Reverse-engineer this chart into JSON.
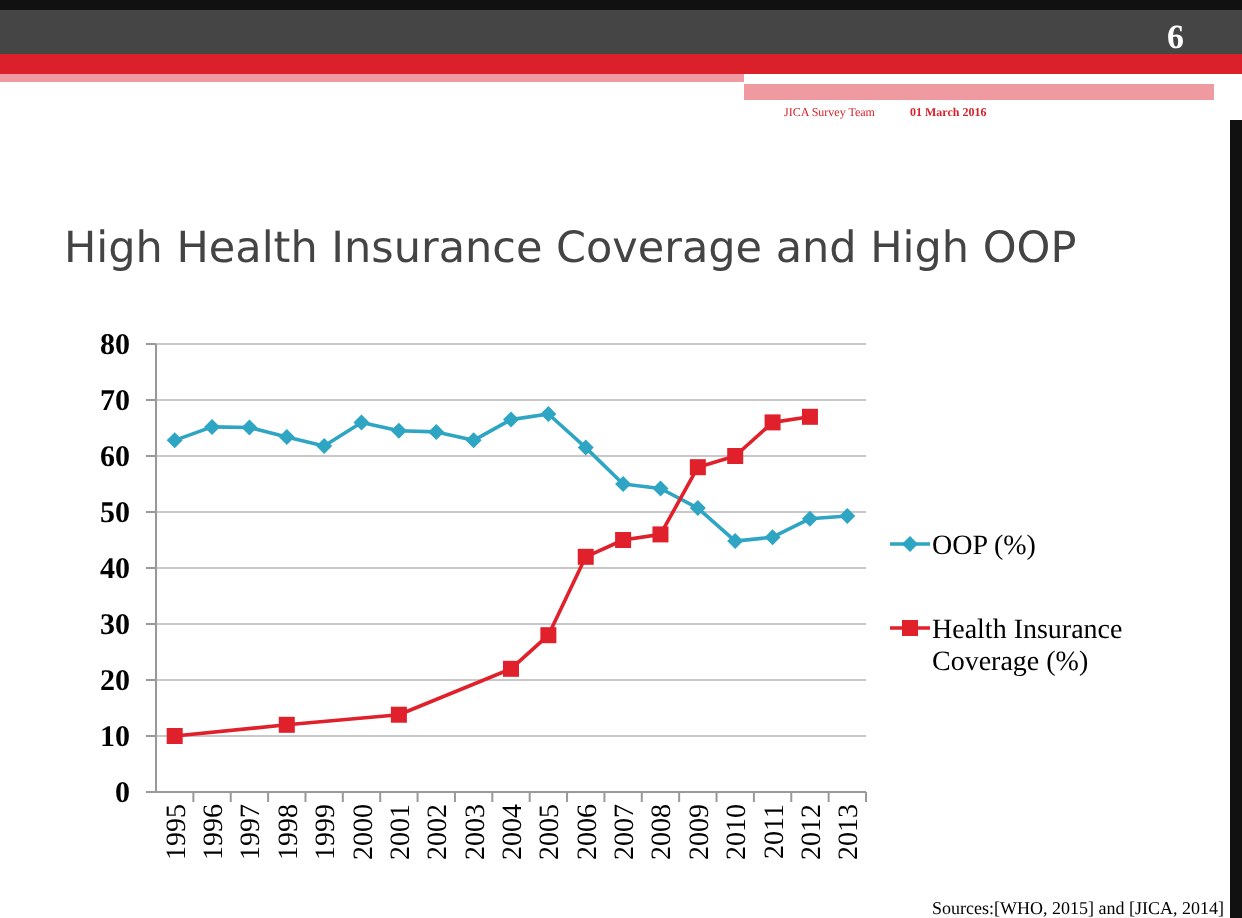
{
  "chart_data": {
    "type": "line",
    "title": "High Health Insurance Coverage and High OOP",
    "categories": [
      "1995",
      "1996",
      "1997",
      "1998",
      "1999",
      "2000",
      "2001",
      "2002",
      "2003",
      "2004",
      "2005",
      "2006",
      "2007",
      "2008",
      "2009",
      "2010",
      "2011",
      "2012",
      "2013"
    ],
    "series": [
      {
        "name": "OOP (%)",
        "color": "#2fa5c4",
        "marker": "diamond",
        "values": [
          62.8,
          65.2,
          65.1,
          63.4,
          61.8,
          66,
          64.5,
          64.3,
          62.8,
          66.5,
          67.5,
          61.5,
          55,
          54.2,
          50.7,
          44.8,
          45.5,
          48.8,
          49.3
        ]
      },
      {
        "name": "Health Insurance Coverage (%)",
        "color": "#e0202a",
        "marker": "square",
        "values": [
          10,
          null,
          null,
          12,
          null,
          null,
          13.8,
          null,
          null,
          22,
          28,
          42,
          45,
          46,
          58,
          60,
          66,
          67,
          null
        ]
      }
    ],
    "ylim": [
      0,
      80
    ],
    "yticks": [
      0,
      10,
      20,
      30,
      40,
      50,
      60,
      70,
      80
    ],
    "grid": "y",
    "legend": "right",
    "annotations": [
      "6",
      "JICA Survey Team",
      "01 March 2016",
      "Sources:[WHO, 2015] and [JICA, 2014]"
    ]
  }
}
